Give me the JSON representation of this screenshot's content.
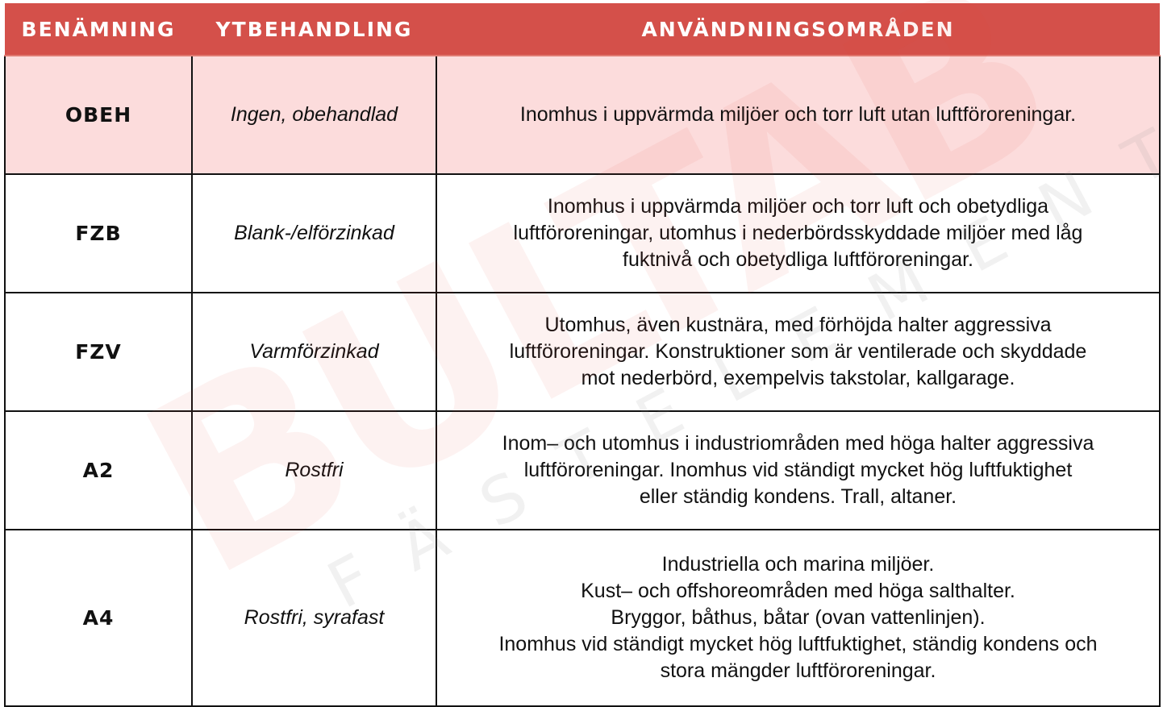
{
  "headers": [
    "BENÄMNING",
    "YTBEHANDLING",
    "ANVÄNDNINGSOMRÅDEN"
  ],
  "rows": [
    {
      "name": "OBEH",
      "surface": "Ingen, obehandlad",
      "usage": [
        "Inomhus i uppvärmda miljöer och torr luft utan luftföroreningar."
      ]
    },
    {
      "name": "FZB",
      "surface": "Blank-/elförzinkad",
      "usage": [
        "Inomhus i uppvärmda miljöer och torr luft och obetydliga",
        "luftföroreningar, utomhus i nederbördsskyddade miljöer med låg",
        "fuktnivå och obetydliga luftföroreningar."
      ]
    },
    {
      "name": "FZV",
      "surface": "Varmförzinkad",
      "usage": [
        "Utomhus, även kustnära, med förhöjda halter aggressiva",
        "luftföroreningar. Konstruktioner som är ventilerade och skyddade",
        "mot nederbörd, exempelvis takstolar, kallgarage."
      ]
    },
    {
      "name": "A2",
      "surface": "Rostfri",
      "usage": [
        "Inom– och utomhus i industriområden med höga halter aggressiva",
        "luftföroreningar. Inomhus vid ständigt mycket hög luftfuktighet",
        "eller ständig kondens. Trall, altaner."
      ]
    },
    {
      "name": "A4",
      "surface": "Rostfri, syrafast",
      "usage": [
        "Industriella och marina miljöer.",
        "Kust– och offshoreområden med höga salthalter.",
        "Bryggor, båthus, båtar (ovan vattenlinjen).",
        "Inomhus vid ständigt mycket hög luftfuktighet, ständig kondens och",
        "stora mängder luftföroreningar."
      ]
    }
  ],
  "watermark": {
    "logo": "BULTAB",
    "tagline": "FÄSTELEMENT"
  },
  "colors": {
    "header_bg": "#d4504a",
    "highlight_row_bg": "#fcd9d9"
  }
}
